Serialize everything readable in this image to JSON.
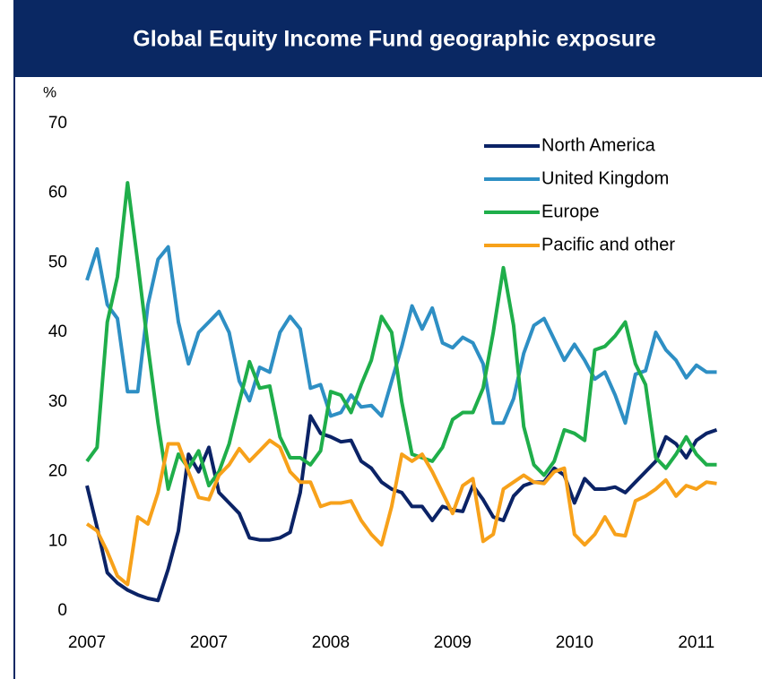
{
  "chart_data": {
    "type": "line",
    "title": "Global Equity Income Fund geographic exposure",
    "ylabel": "%",
    "categories": [
      "2007",
      null,
      null,
      null,
      null,
      null,
      null,
      null,
      null,
      null,
      null,
      null,
      "2007",
      null,
      null,
      null,
      null,
      null,
      null,
      null,
      null,
      null,
      null,
      null,
      "2008",
      null,
      null,
      null,
      null,
      null,
      null,
      null,
      null,
      null,
      null,
      null,
      "2009",
      null,
      null,
      null,
      null,
      null,
      null,
      null,
      null,
      null,
      null,
      null,
      "2010",
      null,
      null,
      null,
      null,
      null,
      null,
      null,
      null,
      null,
      null,
      null,
      "2011",
      null,
      null
    ],
    "series": [
      {
        "name": "North America",
        "color": "#0b2366",
        "values": [
          18,
          12,
          5.5,
          4,
          3,
          2.3,
          1.8,
          1.5,
          6,
          11.5,
          22.5,
          20,
          23.5,
          17,
          15.5,
          14,
          10.5,
          10.2,
          10.2,
          10.5,
          11.3,
          17,
          28,
          25.5,
          25,
          24.3,
          24.5,
          21.5,
          20.5,
          18.5,
          17.5,
          17,
          15,
          15,
          13,
          15,
          14.5,
          14.3,
          18,
          16,
          13.5,
          13,
          16.5,
          18,
          18.5,
          18.5,
          20.5,
          19.5,
          15.5,
          19,
          17.5,
          17.5,
          17.8,
          17,
          18.5,
          20,
          21.5,
          25,
          24,
          22,
          24.5,
          25.5,
          26
        ]
      },
      {
        "name": "United Kingdom",
        "color": "#2e8fc4",
        "values": [
          47.5,
          52,
          44,
          42,
          31.5,
          31.5,
          44,
          50.5,
          52.3,
          41.5,
          35.5,
          40,
          41.5,
          43,
          40,
          33,
          30.2,
          35,
          34.3,
          40,
          42.3,
          40.5,
          32,
          32.5,
          28,
          28.5,
          31,
          29.3,
          29.5,
          28,
          33,
          38,
          43.8,
          40.5,
          43.5,
          38.5,
          37.8,
          39.3,
          38.5,
          35.5,
          27,
          27,
          30.5,
          37,
          41,
          42,
          39,
          36,
          38.3,
          36,
          33.3,
          34.3,
          31,
          27,
          34,
          34.5,
          40,
          37.5,
          36,
          33.5,
          35.3,
          34.3,
          34.3
        ]
      },
      {
        "name": "Europe",
        "color": "#1fae4a",
        "values": [
          21.5,
          23.5,
          41.5,
          48,
          61.5,
          50,
          38,
          27,
          17.5,
          22.5,
          20.5,
          23,
          18,
          20,
          24,
          30,
          35.8,
          32,
          32.3,
          25,
          22,
          22,
          21,
          23,
          31.5,
          31,
          28.5,
          32.5,
          36,
          42.3,
          40,
          30,
          22.5,
          22,
          21.5,
          23.5,
          27.5,
          28.5,
          28.5,
          32,
          40,
          49.3,
          41,
          26.5,
          21,
          19.5,
          21.5,
          26,
          25.5,
          24.5,
          37.5,
          38,
          39.5,
          41.5,
          35.5,
          32.5,
          22,
          20.5,
          22.5,
          25,
          22.5,
          21,
          21
        ]
      },
      {
        "name": "Pacific and other",
        "color": "#f7a11a",
        "values": [
          12.5,
          11.5,
          8.5,
          5,
          3.8,
          13.5,
          12.5,
          17,
          24,
          24,
          20,
          16.3,
          16,
          19.5,
          21,
          23.3,
          21.5,
          23,
          24.5,
          23.5,
          20,
          18.5,
          18.5,
          15,
          15.5,
          15.5,
          15.8,
          13,
          11,
          9.5,
          15,
          22.5,
          21.5,
          22.5,
          20,
          17,
          14,
          18,
          19,
          10,
          11,
          17.5,
          18.5,
          19.5,
          18.5,
          18.3,
          20,
          20.5,
          11,
          9.5,
          11,
          13.5,
          11,
          10.8,
          15.8,
          16.5,
          17.5,
          18.8,
          16.5,
          18,
          17.5,
          18.5,
          18.3
        ]
      }
    ],
    "ylim": [
      0,
      70
    ],
    "yticks": [
      0,
      10,
      20,
      30,
      40,
      50,
      60,
      70
    ],
    "legend": "upper right"
  }
}
